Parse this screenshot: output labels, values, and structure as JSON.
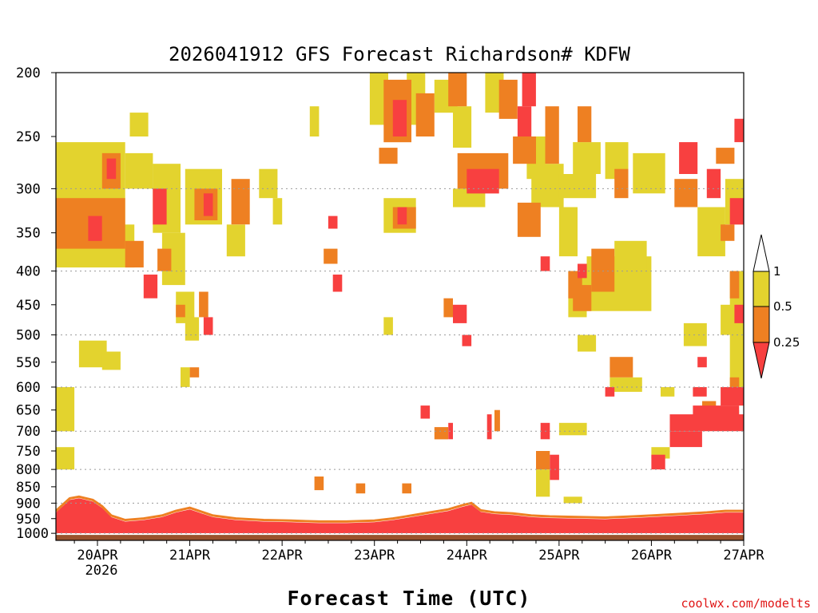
{
  "chart_data": {
    "type": "heatmap",
    "title": "2026041912 GFS Forecast Richardson# KDFW",
    "xlabel": "Forecast Time (UTC)",
    "ylabel": "",
    "x_ticks": [
      "20APR",
      "21APR",
      "22APR",
      "23APR",
      "24APR",
      "25APR",
      "26APR",
      "27APR"
    ],
    "x_year_label": "2026",
    "x_range_days": [
      -0.45,
      7.0
    ],
    "y_ticks": [
      200,
      250,
      300,
      350,
      400,
      450,
      500,
      550,
      600,
      650,
      700,
      750,
      800,
      850,
      900,
      950,
      1000
    ],
    "y_range_hPa": [
      200,
      1025
    ],
    "y_scale": "log",
    "y_gridlines": [
      300,
      400,
      500,
      600,
      700,
      800,
      900,
      1000
    ],
    "colorbar": {
      "levels": [
        "1",
        "0.5",
        "0.25"
      ],
      "bins": [
        {
          "range": "> 1",
          "color": "#ffffff"
        },
        {
          "range": "0.5 - 1",
          "color": "#e3d32e"
        },
        {
          "range": "0.25 - 0.5",
          "color": "#ee8022"
        },
        {
          "range": "< 0.25",
          "color": "#f84040"
        }
      ]
    },
    "ground_color": "#9a522c",
    "surface_pressure_hPa": 1005,
    "regions": [
      {
        "cat": "yellow",
        "d0": -0.45,
        "d1": 0.3,
        "p0": 255,
        "p1": 340
      },
      {
        "cat": "yellow",
        "d0": -0.45,
        "d1": 0.4,
        "p0": 340,
        "p1": 395
      },
      {
        "cat": "orange",
        "d0": -0.45,
        "d1": 0.3,
        "p0": 310,
        "p1": 370
      },
      {
        "cat": "red",
        "d0": -0.1,
        "d1": 0.05,
        "p0": 330,
        "p1": 360
      },
      {
        "cat": "orange",
        "d0": 0.05,
        "d1": 0.25,
        "p0": 265,
        "p1": 300
      },
      {
        "cat": "red",
        "d0": 0.1,
        "d1": 0.2,
        "p0": 270,
        "p1": 290
      },
      {
        "cat": "yellow",
        "d0": 0.3,
        "d1": 0.6,
        "p0": 265,
        "p1": 300
      },
      {
        "cat": "yellow",
        "d0": 0.35,
        "d1": 0.55,
        "p0": 230,
        "p1": 250
      },
      {
        "cat": "orange",
        "d0": 0.3,
        "d1": 0.5,
        "p0": 360,
        "p1": 395
      },
      {
        "cat": "red",
        "d0": 0.5,
        "d1": 0.65,
        "p0": 405,
        "p1": 440
      },
      {
        "cat": "yellow",
        "d0": 0.6,
        "d1": 0.9,
        "p0": 275,
        "p1": 350
      },
      {
        "cat": "red",
        "d0": 0.6,
        "d1": 0.75,
        "p0": 300,
        "p1": 340
      },
      {
        "cat": "yellow",
        "d0": 0.7,
        "d1": 0.95,
        "p0": 350,
        "p1": 420
      },
      {
        "cat": "yellow",
        "d0": 0.95,
        "d1": 1.35,
        "p0": 280,
        "p1": 340
      },
      {
        "cat": "orange",
        "d0": 1.05,
        "d1": 1.3,
        "p0": 300,
        "p1": 335
      },
      {
        "cat": "red",
        "d0": 1.15,
        "d1": 1.25,
        "p0": 305,
        "p1": 330
      },
      {
        "cat": "orange",
        "d0": 1.45,
        "d1": 1.65,
        "p0": 290,
        "p1": 340
      },
      {
        "cat": "yellow",
        "d0": 1.4,
        "d1": 1.6,
        "p0": 340,
        "p1": 380
      },
      {
        "cat": "yellow",
        "d0": 1.75,
        "d1": 1.95,
        "p0": 280,
        "p1": 310
      },
      {
        "cat": "yellow",
        "d0": 1.9,
        "d1": 2.0,
        "p0": 310,
        "p1": 340
      },
      {
        "cat": "yellow",
        "d0": 2.3,
        "d1": 2.4,
        "p0": 225,
        "p1": 250
      },
      {
        "cat": "orange",
        "d0": 3.05,
        "d1": 3.25,
        "p0": 260,
        "p1": 275
      },
      {
        "cat": "yellow",
        "d0": 2.95,
        "d1": 3.15,
        "p0": 200,
        "p1": 240
      },
      {
        "cat": "orange",
        "d0": 3.1,
        "d1": 3.4,
        "p0": 205,
        "p1": 255
      },
      {
        "cat": "red",
        "d0": 3.2,
        "d1": 3.35,
        "p0": 220,
        "p1": 250
      },
      {
        "cat": "yellow",
        "d0": 3.35,
        "d1": 3.55,
        "p0": 200,
        "p1": 240
      },
      {
        "cat": "orange",
        "d0": 3.45,
        "d1": 3.65,
        "p0": 215,
        "p1": 250
      },
      {
        "cat": "yellow",
        "d0": 3.65,
        "d1": 3.9,
        "p0": 205,
        "p1": 230
      },
      {
        "cat": "orange",
        "d0": 3.8,
        "d1": 4.0,
        "p0": 200,
        "p1": 225
      },
      {
        "cat": "yellow",
        "d0": 3.85,
        "d1": 4.05,
        "p0": 225,
        "p1": 260
      },
      {
        "cat": "red",
        "d0": 4.0,
        "d1": 4.35,
        "p0": 280,
        "p1": 305
      },
      {
        "cat": "orange",
        "d0": 3.9,
        "d1": 4.45,
        "p0": 265,
        "p1": 300
      },
      {
        "cat": "yellow",
        "d0": 3.85,
        "d1": 4.2,
        "p0": 300,
        "p1": 320
      },
      {
        "cat": "yellow",
        "d0": 3.1,
        "d1": 3.45,
        "p0": 310,
        "p1": 350
      },
      {
        "cat": "orange",
        "d0": 3.2,
        "d1": 3.45,
        "p0": 320,
        "p1": 345
      },
      {
        "cat": "red",
        "d0": 3.25,
        "d1": 3.35,
        "p0": 320,
        "p1": 340
      },
      {
        "cat": "orange",
        "d0": 4.5,
        "d1": 4.75,
        "p0": 250,
        "p1": 275
      },
      {
        "cat": "red",
        "d0": 4.55,
        "d1": 4.7,
        "p0": 225,
        "p1": 250
      },
      {
        "cat": "yellow",
        "d0": 4.2,
        "d1": 4.4,
        "p0": 200,
        "p1": 230
      },
      {
        "cat": "orange",
        "d0": 4.35,
        "d1": 4.55,
        "p0": 205,
        "p1": 235
      },
      {
        "cat": "red",
        "d0": 4.6,
        "d1": 4.75,
        "p0": 200,
        "p1": 225
      },
      {
        "cat": "yellow",
        "d0": 4.65,
        "d1": 4.85,
        "p0": 250,
        "p1": 290
      },
      {
        "cat": "orange",
        "d0": 4.55,
        "d1": 4.8,
        "p0": 315,
        "p1": 355
      },
      {
        "cat": "yellow",
        "d0": 4.7,
        "d1": 5.05,
        "p0": 275,
        "p1": 320
      },
      {
        "cat": "orange",
        "d0": 4.85,
        "d1": 5.0,
        "p0": 225,
        "p1": 275
      },
      {
        "cat": "yellow",
        "d0": 5.0,
        "d1": 5.4,
        "p0": 285,
        "p1": 310
      },
      {
        "cat": "yellow",
        "d0": 5.15,
        "d1": 5.45,
        "p0": 255,
        "p1": 285
      },
      {
        "cat": "orange",
        "d0": 5.2,
        "d1": 5.35,
        "p0": 225,
        "p1": 255
      },
      {
        "cat": "yellow",
        "d0": 5.5,
        "d1": 5.75,
        "p0": 255,
        "p1": 290
      },
      {
        "cat": "orange",
        "d0": 5.6,
        "d1": 5.75,
        "p0": 280,
        "p1": 310
      },
      {
        "cat": "yellow",
        "d0": 5.8,
        "d1": 6.15,
        "p0": 265,
        "p1": 305
      },
      {
        "cat": "red",
        "d0": 6.3,
        "d1": 6.5,
        "p0": 255,
        "p1": 285
      },
      {
        "cat": "orange",
        "d0": 6.25,
        "d1": 6.5,
        "p0": 290,
        "p1": 320
      },
      {
        "cat": "red",
        "d0": 6.6,
        "d1": 6.75,
        "p0": 280,
        "p1": 310
      },
      {
        "cat": "orange",
        "d0": 6.7,
        "d1": 6.9,
        "p0": 260,
        "p1": 275
      },
      {
        "cat": "red",
        "d0": 6.9,
        "d1": 7.0,
        "p0": 235,
        "p1": 255
      },
      {
        "cat": "yellow",
        "d0": 6.8,
        "d1": 7.0,
        "p0": 290,
        "p1": 340
      },
      {
        "cat": "orange",
        "d0": 6.75,
        "d1": 6.9,
        "p0": 340,
        "p1": 360
      },
      {
        "cat": "yellow",
        "d0": 6.5,
        "d1": 6.8,
        "p0": 320,
        "p1": 380
      },
      {
        "cat": "red",
        "d0": 6.85,
        "d1": 7.0,
        "p0": 310,
        "p1": 340
      },
      {
        "cat": "yellow",
        "d0": 5.0,
        "d1": 5.2,
        "p0": 320,
        "p1": 380
      },
      {
        "cat": "red",
        "d0": 4.8,
        "d1": 4.9,
        "p0": 380,
        "p1": 400
      },
      {
        "cat": "yellow",
        "d0": 5.3,
        "d1": 6.0,
        "p0": 380,
        "p1": 460
      },
      {
        "cat": "orange",
        "d0": 5.35,
        "d1": 5.6,
        "p0": 370,
        "p1": 430
      },
      {
        "cat": "red",
        "d0": 5.2,
        "d1": 5.3,
        "p0": 390,
        "p1": 410
      },
      {
        "cat": "yellow",
        "d0": 5.6,
        "d1": 5.95,
        "p0": 360,
        "p1": 400
      },
      {
        "cat": "yellow",
        "d0": 5.1,
        "d1": 5.3,
        "p0": 400,
        "p1": 470
      },
      {
        "cat": "orange",
        "d0": 5.1,
        "d1": 5.25,
        "p0": 400,
        "p1": 440
      },
      {
        "cat": "yellow",
        "d0": 5.2,
        "d1": 5.4,
        "p0": 500,
        "p1": 530
      },
      {
        "cat": "orange",
        "d0": 5.15,
        "d1": 5.35,
        "p0": 420,
        "p1": 460
      },
      {
        "cat": "orange",
        "d0": 5.55,
        "d1": 5.8,
        "p0": 540,
        "p1": 580
      },
      {
        "cat": "yellow",
        "d0": 5.55,
        "d1": 5.9,
        "p0": 580,
        "p1": 610
      },
      {
        "cat": "yellow",
        "d0": 6.35,
        "d1": 6.6,
        "p0": 480,
        "p1": 520
      },
      {
        "cat": "red",
        "d0": 6.5,
        "d1": 6.6,
        "p0": 540,
        "p1": 560
      },
      {
        "cat": "yellow",
        "d0": 6.75,
        "d1": 6.9,
        "p0": 450,
        "p1": 500
      },
      {
        "cat": "yellow",
        "d0": 6.85,
        "d1": 7.0,
        "p0": 400,
        "p1": 640
      },
      {
        "cat": "orange",
        "d0": 6.85,
        "d1": 6.95,
        "p0": 400,
        "p1": 440
      },
      {
        "cat": "red",
        "d0": 6.9,
        "d1": 7.0,
        "p0": 450,
        "p1": 480
      },
      {
        "cat": "orange",
        "d0": 6.85,
        "d1": 6.95,
        "p0": 580,
        "p1": 610
      },
      {
        "cat": "red",
        "d0": 6.2,
        "d1": 7.0,
        "p0": 660,
        "p1": 700
      },
      {
        "cat": "red",
        "d0": 6.45,
        "d1": 6.95,
        "p0": 640,
        "p1": 680
      },
      {
        "cat": "red",
        "d0": 6.2,
        "d1": 6.55,
        "p0": 700,
        "p1": 740
      },
      {
        "cat": "orange",
        "d0": 6.55,
        "d1": 6.7,
        "p0": 630,
        "p1": 660
      },
      {
        "cat": "orange",
        "d0": 6.75,
        "d1": 6.95,
        "p0": 650,
        "p1": 680
      },
      {
        "cat": "red",
        "d0": 6.75,
        "d1": 7.0,
        "p0": 600,
        "p1": 640
      },
      {
        "cat": "red",
        "d0": 6.45,
        "d1": 6.6,
        "p0": 600,
        "p1": 620
      },
      {
        "cat": "red",
        "d0": 6.0,
        "d1": 6.15,
        "p0": 760,
        "p1": 800
      },
      {
        "cat": "yellow",
        "d0": 6.0,
        "d1": 6.2,
        "p0": 740,
        "p1": 770
      },
      {
        "cat": "yellow",
        "d0": 6.1,
        "d1": 6.25,
        "p0": 600,
        "p1": 620
      },
      {
        "cat": "red",
        "d0": 5.5,
        "d1": 5.6,
        "p0": 600,
        "p1": 620
      },
      {
        "cat": "yellow",
        "d0": 5.0,
        "d1": 5.3,
        "p0": 680,
        "p1": 710
      },
      {
        "cat": "red",
        "d0": 4.8,
        "d1": 4.9,
        "p0": 680,
        "p1": 720
      },
      {
        "cat": "orange",
        "d0": 4.75,
        "d1": 4.9,
        "p0": 750,
        "p1": 800
      },
      {
        "cat": "yellow",
        "d0": 4.75,
        "d1": 4.9,
        "p0": 800,
        "p1": 880
      },
      {
        "cat": "red",
        "d0": 4.9,
        "d1": 5.0,
        "p0": 760,
        "p1": 830
      },
      {
        "cat": "yellow",
        "d0": 5.05,
        "d1": 5.25,
        "p0": 880,
        "p1": 900
      },
      {
        "cat": "yellow",
        "d0": -0.45,
        "d1": -0.25,
        "p0": 600,
        "p1": 700
      },
      {
        "cat": "yellow",
        "d0": -0.45,
        "d1": -0.25,
        "p0": 740,
        "p1": 800
      },
      {
        "cat": "yellow",
        "d0": -0.2,
        "d1": 0.1,
        "p0": 510,
        "p1": 560
      },
      {
        "cat": "yellow",
        "d0": 0.05,
        "d1": 0.25,
        "p0": 530,
        "p1": 565
      },
      {
        "cat": "yellow",
        "d0": 0.85,
        "d1": 1.05,
        "p0": 430,
        "p1": 480
      },
      {
        "cat": "orange",
        "d0": 0.85,
        "d1": 0.95,
        "p0": 450,
        "p1": 470
      },
      {
        "cat": "yellow",
        "d0": 0.95,
        "d1": 1.1,
        "p0": 470,
        "p1": 510
      },
      {
        "cat": "orange",
        "d0": 1.0,
        "d1": 1.1,
        "p0": 560,
        "p1": 580
      },
      {
        "cat": "yellow",
        "d0": 0.9,
        "d1": 1.0,
        "p0": 560,
        "p1": 600
      },
      {
        "cat": "red",
        "d0": 1.15,
        "d1": 1.25,
        "p0": 470,
        "p1": 500
      },
      {
        "cat": "orange",
        "d0": 1.1,
        "d1": 1.2,
        "p0": 430,
        "p1": 470
      },
      {
        "cat": "orange",
        "d0": 0.65,
        "d1": 0.8,
        "p0": 370,
        "p1": 400
      },
      {
        "cat": "red",
        "d0": 3.5,
        "d1": 3.6,
        "p0": 640,
        "p1": 670
      },
      {
        "cat": "red",
        "d0": 3.85,
        "d1": 4.0,
        "p0": 450,
        "p1": 480
      },
      {
        "cat": "orange",
        "d0": 3.75,
        "d1": 3.85,
        "p0": 440,
        "p1": 470
      },
      {
        "cat": "red",
        "d0": 3.95,
        "d1": 4.05,
        "p0": 500,
        "p1": 520
      },
      {
        "cat": "orange",
        "d0": 3.65,
        "d1": 3.8,
        "p0": 690,
        "p1": 720
      },
      {
        "cat": "red",
        "d0": 3.8,
        "d1": 3.85,
        "p0": 680,
        "p1": 720
      },
      {
        "cat": "red",
        "d0": 4.22,
        "d1": 4.27,
        "p0": 660,
        "p1": 720
      },
      {
        "cat": "orange",
        "d0": 4.3,
        "d1": 4.36,
        "p0": 650,
        "p1": 700
      },
      {
        "cat": "red",
        "d0": 2.5,
        "d1": 2.6,
        "p0": 330,
        "p1": 345
      },
      {
        "cat": "orange",
        "d0": 2.45,
        "d1": 2.6,
        "p0": 370,
        "p1": 390
      },
      {
        "cat": "yellow",
        "d0": 3.1,
        "d1": 3.2,
        "p0": 470,
        "p1": 500
      },
      {
        "cat": "red",
        "d0": 2.55,
        "d1": 2.65,
        "p0": 405,
        "p1": 430
      },
      {
        "cat": "orange",
        "d0": 2.8,
        "d1": 2.9,
        "p0": 840,
        "p1": 870
      },
      {
        "cat": "orange",
        "d0": 3.3,
        "d1": 3.4,
        "p0": 840,
        "p1": 870
      },
      {
        "cat": "orange",
        "d0": 2.35,
        "d1": 2.45,
        "p0": 820,
        "p1": 860
      }
    ],
    "blh": [
      [
        -0.45,
        930
      ],
      [
        -0.3,
        890
      ],
      [
        -0.2,
        885
      ],
      [
        -0.05,
        895
      ],
      [
        0.05,
        915
      ],
      [
        0.15,
        945
      ],
      [
        0.3,
        960
      ],
      [
        0.5,
        955
      ],
      [
        0.7,
        945
      ],
      [
        0.85,
        930
      ],
      [
        1.0,
        920
      ],
      [
        1.1,
        930
      ],
      [
        1.25,
        945
      ],
      [
        1.5,
        955
      ],
      [
        1.8,
        960
      ],
      [
        2.1,
        962
      ],
      [
        2.4,
        965
      ],
      [
        2.7,
        965
      ],
      [
        3.0,
        962
      ],
      [
        3.2,
        955
      ],
      [
        3.4,
        945
      ],
      [
        3.6,
        935
      ],
      [
        3.8,
        925
      ],
      [
        3.95,
        912
      ],
      [
        4.05,
        905
      ],
      [
        4.15,
        928
      ],
      [
        4.3,
        935
      ],
      [
        4.5,
        938
      ],
      [
        4.7,
        945
      ],
      [
        4.9,
        948
      ],
      [
        5.2,
        950
      ],
      [
        5.5,
        952
      ],
      [
        5.8,
        948
      ],
      [
        6.0,
        945
      ],
      [
        6.3,
        940
      ],
      [
        6.6,
        935
      ],
      [
        6.8,
        930
      ],
      [
        7.0,
        930
      ]
    ]
  },
  "credit": "coolwx.com/modelts"
}
